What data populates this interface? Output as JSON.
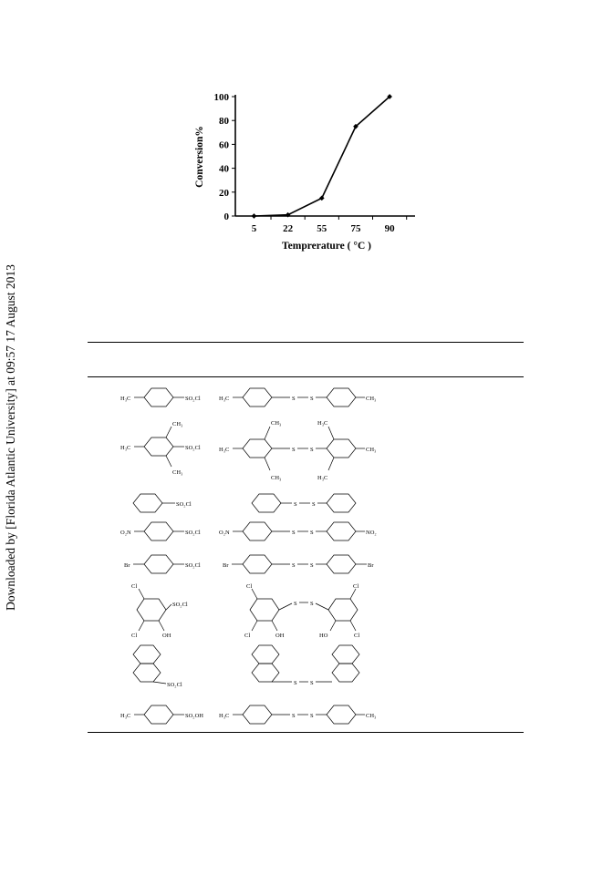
{
  "download_note": "Downloaded by [Florida Atlantic University] at 09:57 17 August 2013",
  "chart_data": {
    "type": "line",
    "categories": [
      "5",
      "22",
      "55",
      "75",
      "90"
    ],
    "series": [
      {
        "values": [
          0,
          1,
          15,
          75,
          100
        ]
      }
    ],
    "xlabel": "Temprerature ( °C )",
    "ylabel": "Conversion%",
    "ylim": [
      0,
      100
    ],
    "yticks": [
      0,
      20,
      40,
      60,
      80,
      100
    ],
    "grid": false
  },
  "table_rows": [
    {
      "reactant": "H3C-C6H4-SO2Cl",
      "product": "H3C-C6H4-S-S-C6H4-CH3"
    },
    {
      "reactant": "mesityl-SO2Cl",
      "product": "mesityl-S-S-mesityl"
    },
    {
      "reactant": "C6H5-SO2Cl",
      "product": "C6H5-S-S-C6H5"
    },
    {
      "reactant": "O2N-C6H4-SO2Cl",
      "product": "O2N-C6H4-S-S-C6H4-NO2"
    },
    {
      "reactant": "Br-C6H4-SO2Cl",
      "product": "Br-C6H4-S-S-C6H4-Br"
    },
    {
      "reactant": "3,5-dichloro-2-hydroxyphenyl-SO2Cl",
      "product": "bis(3,5-dichloro-2-hydroxyphenyl) disulfide"
    },
    {
      "reactant": "1-naphthyl-SO2Cl",
      "product": "1-naphthyl-S-S-1-naphthyl"
    },
    {
      "reactant": "H3C-C6H4-SO2OH",
      "product": "H3C-C6H4-S-S-C6H4-CH3"
    }
  ]
}
